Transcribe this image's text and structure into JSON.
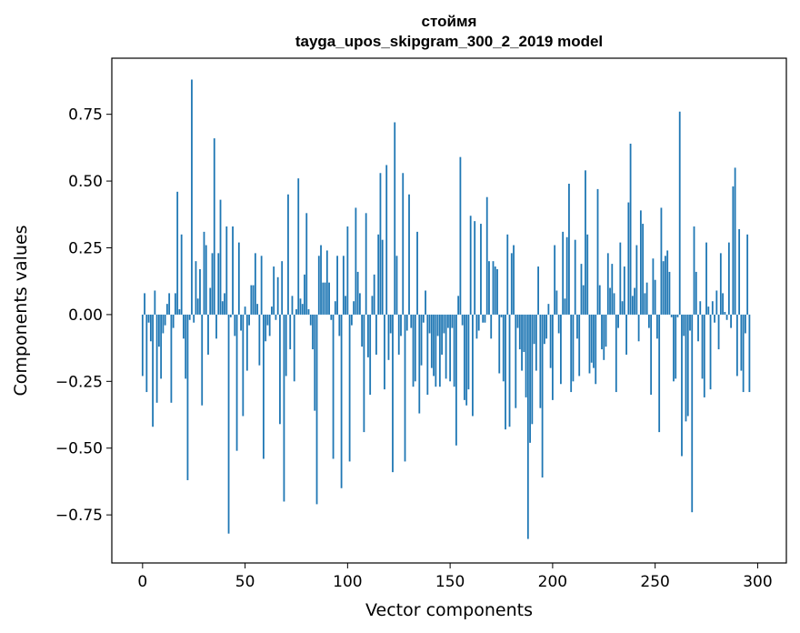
{
  "chart_data": {
    "type": "bar",
    "title": "стоймя",
    "subtitle": "tayga_upos_skipgram_300_2_2019 model",
    "xlabel": "Vector components",
    "ylabel": "Components values",
    "xlim": [
      -15,
      314
    ],
    "ylim": [
      -0.93,
      0.96
    ],
    "xticks": [
      0,
      50,
      100,
      150,
      200,
      250,
      300
    ],
    "xtick_labels": [
      "0",
      "50",
      "100",
      "150",
      "200",
      "250",
      "300"
    ],
    "yticks": [
      -0.75,
      -0.5,
      -0.25,
      0.0,
      0.25,
      0.5,
      0.75
    ],
    "ytick_labels": [
      "−0.75",
      "−0.50",
      "−0.25",
      "0.00",
      "0.25",
      "0.50",
      "0.75"
    ],
    "grid": false,
    "legend": "none",
    "bar_color": "#1f77b4",
    "values": [
      -0.23,
      0.08,
      -0.29,
      -0.03,
      -0.1,
      -0.42,
      0.09,
      -0.33,
      -0.12,
      -0.24,
      -0.07,
      -0.04,
      0.04,
      0.08,
      -0.33,
      -0.05,
      0.08,
      0.46,
      0.02,
      0.3,
      -0.09,
      -0.24,
      -0.62,
      -0.02,
      0.88,
      -0.03,
      0.2,
      0.06,
      0.17,
      -0.34,
      0.31,
      0.26,
      -0.15,
      0.1,
      0.23,
      0.66,
      -0.09,
      0.23,
      0.43,
      0.05,
      0.08,
      0.33,
      -0.82,
      -0.01,
      0.33,
      -0.08,
      -0.51,
      0.27,
      -0.06,
      -0.38,
      0.03,
      -0.21,
      -0.04,
      0.11,
      0.11,
      0.23,
      0.04,
      -0.19,
      0.22,
      -0.54,
      -0.1,
      -0.04,
      -0.08,
      0.03,
      0.18,
      -0.02,
      0.14,
      -0.41,
      0.2,
      -0.7,
      -0.23,
      0.45,
      -0.13,
      0.07,
      -0.25,
      0.02,
      0.51,
      0.06,
      0.04,
      0.15,
      0.38,
      0.02,
      -0.04,
      -0.13,
      -0.36,
      -0.71,
      0.22,
      0.26,
      0.12,
      0.12,
      0.24,
      0.12,
      -0.02,
      -0.54,
      0.05,
      0.22,
      -0.08,
      -0.65,
      0.22,
      0.07,
      0.33,
      -0.55,
      -0.04,
      0.05,
      0.4,
      0.16,
      0.08,
      -0.12,
      -0.44,
      0.38,
      -0.16,
      -0.3,
      0.07,
      0.15,
      -0.15,
      0.3,
      0.53,
      0.28,
      -0.28,
      0.56,
      -0.17,
      -0.07,
      -0.59,
      0.72,
      0.22,
      -0.15,
      -0.08,
      0.53,
      -0.55,
      -0.06,
      0.45,
      -0.05,
      -0.27,
      -0.25,
      0.31,
      -0.37,
      -0.19,
      -0.03,
      0.09,
      -0.3,
      -0.07,
      -0.2,
      -0.23,
      -0.27,
      -0.08,
      -0.27,
      -0.15,
      -0.07,
      -0.24,
      -0.05,
      -0.25,
      -0.05,
      -0.27,
      -0.49,
      0.07,
      0.59,
      -0.04,
      -0.32,
      -0.34,
      -0.28,
      0.37,
      -0.38,
      0.35,
      -0.09,
      -0.06,
      0.34,
      -0.03,
      -0.03,
      0.44,
      0.2,
      -0.09,
      0.2,
      0.18,
      0.17,
      -0.22,
      -0.01,
      -0.25,
      -0.43,
      0.3,
      -0.42,
      0.23,
      0.26,
      -0.35,
      -0.05,
      -0.13,
      -0.21,
      -0.14,
      -0.31,
      -0.84,
      -0.48,
      -0.41,
      -0.11,
      -0.21,
      0.18,
      -0.35,
      -0.61,
      -0.11,
      -0.09,
      0.04,
      -0.2,
      -0.32,
      0.26,
      0.09,
      -0.07,
      -0.26,
      0.31,
      0.06,
      0.29,
      0.49,
      -0.29,
      -0.25,
      0.28,
      -0.09,
      -0.23,
      0.19,
      0.11,
      0.54,
      0.3,
      -0.22,
      -0.18,
      -0.2,
      -0.26,
      0.47,
      0.11,
      -0.13,
      -0.17,
      -0.12,
      0.23,
      0.1,
      0.19,
      0.08,
      -0.29,
      -0.05,
      0.27,
      0.05,
      0.18,
      -0.15,
      0.42,
      0.64,
      0.07,
      0.1,
      0.26,
      -0.1,
      0.39,
      0.34,
      0.08,
      0.12,
      -0.05,
      -0.3,
      0.21,
      0.13,
      -0.09,
      -0.44,
      0.4,
      0.2,
      0.22,
      0.24,
      0.16,
      -0.01,
      -0.25,
      -0.24,
      -0.01,
      0.76,
      -0.53,
      -0.08,
      -0.4,
      -0.38,
      -0.06,
      -0.74,
      0.33,
      0.16,
      -0.1,
      0.05,
      -0.24,
      -0.31,
      0.27,
      0.03,
      -0.28,
      0.05,
      -0.03,
      0.09,
      -0.13,
      0.23,
      0.08,
      0.01,
      -0.02,
      0.27,
      -0.05,
      0.48,
      0.55,
      -0.23,
      0.32,
      -0.21,
      -0.29,
      -0.07,
      0.3,
      -0.29
    ]
  }
}
